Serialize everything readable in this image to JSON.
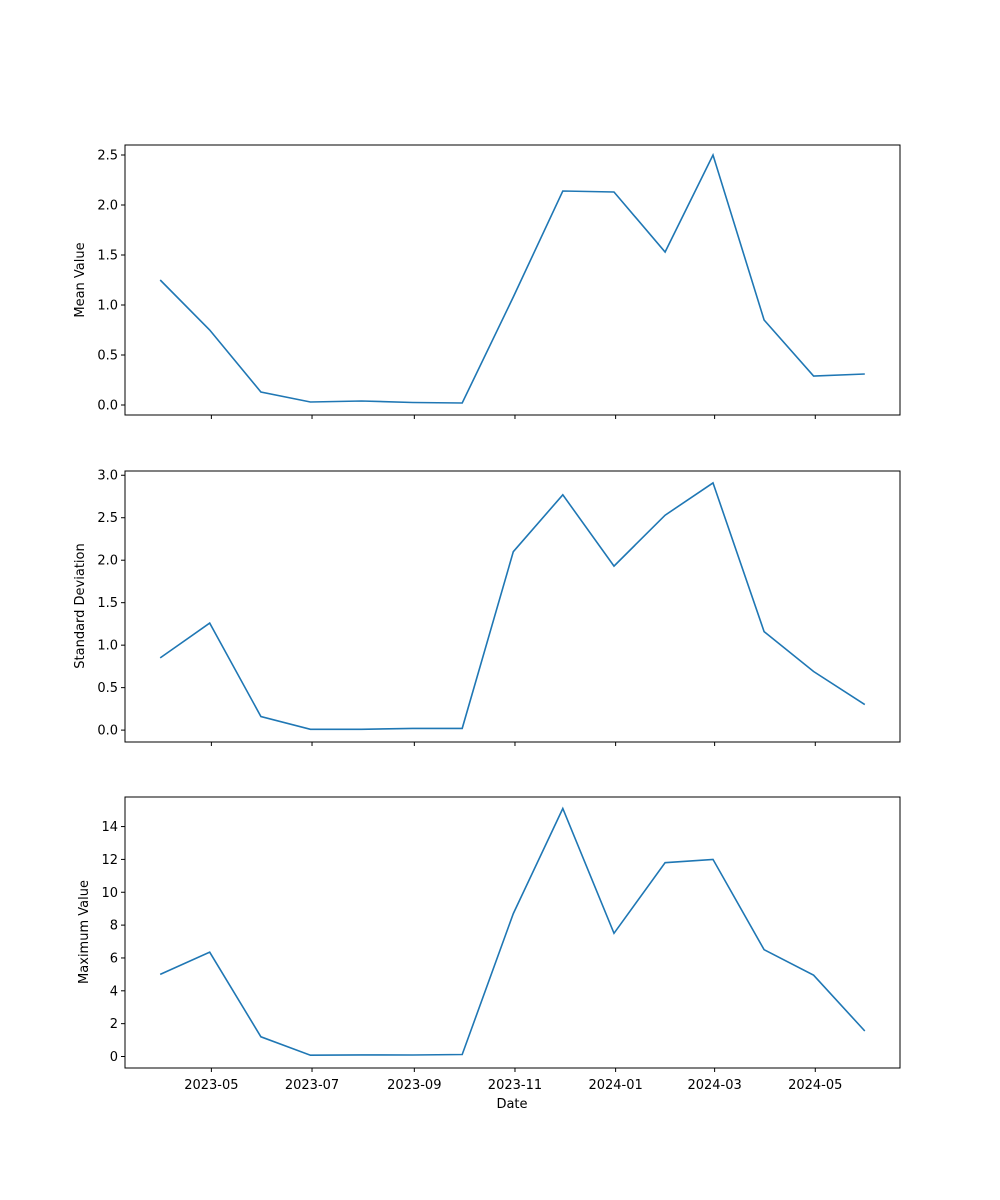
{
  "chart_data": [
    {
      "type": "line",
      "ylabel": "Mean Value",
      "xlabel": "",
      "color": "#1f77b4",
      "grid": false,
      "ylim": [
        -0.1,
        2.6
      ],
      "yticks": [
        0.0,
        0.5,
        1.0,
        1.5,
        2.0,
        2.5
      ],
      "ytick_labels": [
        "0.0",
        "0.5",
        "1.0",
        "1.5",
        "2.0",
        "2.5"
      ],
      "x": [
        "2023-03-31",
        "2023-04-30",
        "2023-05-31",
        "2023-06-30",
        "2023-07-31",
        "2023-08-31",
        "2023-09-30",
        "2023-10-31",
        "2023-11-30",
        "2023-12-31",
        "2024-01-31",
        "2024-02-29",
        "2024-03-31",
        "2024-04-30",
        "2024-05-31"
      ],
      "values": [
        1.25,
        0.75,
        0.13,
        0.03,
        0.04,
        0.025,
        0.02,
        1.08,
        2.14,
        2.13,
        1.53,
        2.5,
        0.85,
        0.29,
        0.31
      ]
    },
    {
      "type": "line",
      "ylabel": "Standard Deviation",
      "xlabel": "",
      "color": "#1f77b4",
      "grid": false,
      "ylim": [
        -0.14,
        3.05
      ],
      "yticks": [
        0.0,
        0.5,
        1.0,
        1.5,
        2.0,
        2.5,
        3.0
      ],
      "ytick_labels": [
        "0.0",
        "0.5",
        "1.0",
        "1.5",
        "2.0",
        "2.5",
        "3.0"
      ],
      "x": [
        "2023-03-31",
        "2023-04-30",
        "2023-05-31",
        "2023-06-30",
        "2023-07-31",
        "2023-08-31",
        "2023-09-30",
        "2023-10-31",
        "2023-11-30",
        "2023-12-31",
        "2024-01-31",
        "2024-02-29",
        "2024-03-31",
        "2024-04-30",
        "2024-05-31"
      ],
      "values": [
        0.85,
        1.26,
        0.16,
        0.01,
        0.01,
        0.02,
        0.02,
        2.1,
        2.77,
        1.93,
        2.53,
        2.91,
        1.16,
        0.69,
        0.3
      ]
    },
    {
      "type": "line",
      "ylabel": "Maximum Value",
      "xlabel": "Date",
      "color": "#1f77b4",
      "grid": false,
      "ylim": [
        -0.7,
        15.8
      ],
      "yticks": [
        0,
        2,
        4,
        6,
        8,
        10,
        12,
        14
      ],
      "ytick_labels": [
        "0",
        "2",
        "4",
        "6",
        "8",
        "10",
        "12",
        "14"
      ],
      "xticks": [
        "2023-05-01",
        "2023-07-01",
        "2023-09-01",
        "2023-11-01",
        "2024-01-01",
        "2024-03-01",
        "2024-05-01"
      ],
      "xtick_labels": [
        "2023-05",
        "2023-07",
        "2023-09",
        "2023-11",
        "2024-01",
        "2024-03",
        "2024-05"
      ],
      "x": [
        "2023-03-31",
        "2023-04-30",
        "2023-05-31",
        "2023-06-30",
        "2023-07-31",
        "2023-08-31",
        "2023-09-30",
        "2023-10-31",
        "2023-11-30",
        "2023-12-31",
        "2024-01-31",
        "2024-02-29",
        "2024-03-31",
        "2024-04-30",
        "2024-05-31"
      ],
      "values": [
        5.0,
        6.35,
        1.2,
        0.08,
        0.1,
        0.09,
        0.12,
        8.7,
        15.1,
        7.5,
        11.8,
        12.0,
        6.5,
        4.95,
        1.55
      ]
    }
  ]
}
